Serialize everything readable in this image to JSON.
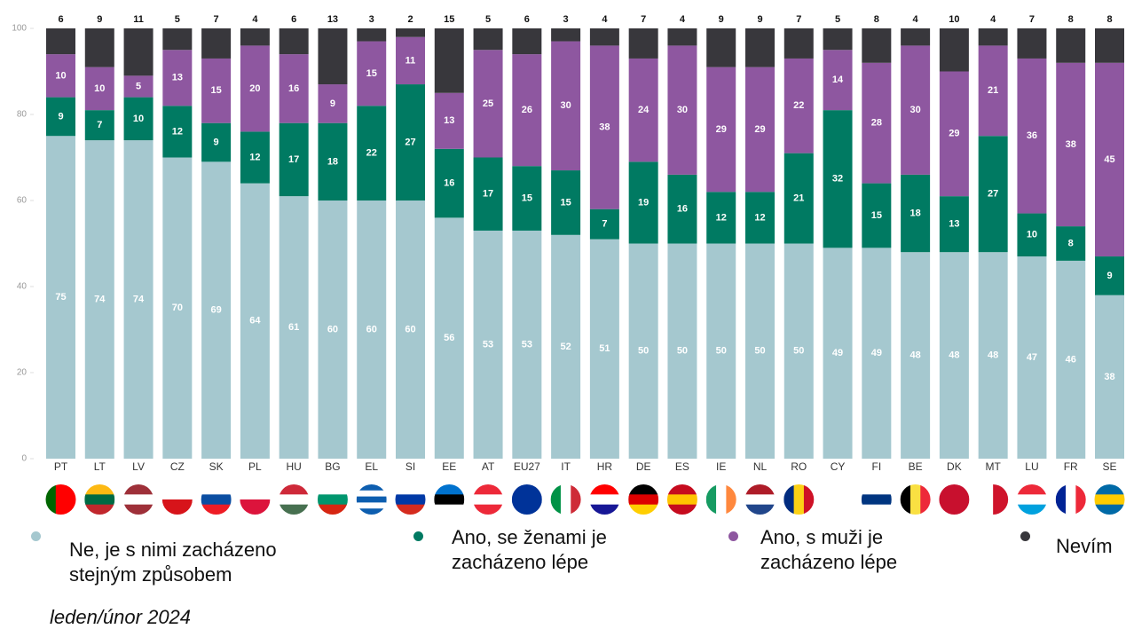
{
  "chart_data": {
    "type": "stacked-bar",
    "categories": [
      "PT",
      "LT",
      "LV",
      "CZ",
      "SK",
      "PL",
      "HU",
      "BG",
      "EL",
      "SI",
      "EE",
      "AT",
      "EU27",
      "IT",
      "HR",
      "DE",
      "ES",
      "IE",
      "NL",
      "RO",
      "CY",
      "FI",
      "BE",
      "DK",
      "MT",
      "LU",
      "FR",
      "SE"
    ],
    "series": [
      {
        "name": "Ne, je s nimi zacházeno stejným způsobem",
        "color": "#a5c8cf",
        "values": [
          75,
          74,
          74,
          70,
          69,
          64,
          61,
          60,
          60,
          60,
          56,
          53,
          53,
          52,
          51,
          50,
          50,
          50,
          50,
          50,
          49,
          49,
          48,
          48,
          48,
          47,
          46,
          38
        ]
      },
      {
        "name": "Ano, se ženami je zacházeno lépe",
        "color": "#007a62",
        "values": [
          9,
          7,
          10,
          12,
          9,
          12,
          17,
          18,
          22,
          27,
          16,
          17,
          15,
          15,
          7,
          19,
          16,
          12,
          12,
          21,
          32,
          15,
          18,
          13,
          27,
          10,
          8,
          9
        ]
      },
      {
        "name": "Ano, s muži je zacházeno lépe",
        "color": "#8e57a0",
        "values": [
          10,
          10,
          5,
          13,
          15,
          20,
          16,
          9,
          15,
          11,
          13,
          25,
          26,
          30,
          38,
          24,
          30,
          29,
          29,
          22,
          14,
          28,
          30,
          29,
          21,
          36,
          38,
          45
        ]
      },
      {
        "name": "Nevím",
        "color": "#38373c",
        "values": [
          6,
          9,
          11,
          5,
          7,
          4,
          6,
          13,
          3,
          2,
          15,
          5,
          6,
          3,
          4,
          7,
          4,
          9,
          9,
          7,
          5,
          8,
          4,
          10,
          4,
          7,
          8,
          8
        ]
      }
    ],
    "ylim": [
      0,
      100
    ],
    "yticks": [
      0,
      20,
      40,
      60,
      80,
      100
    ],
    "note": "leden/únor 2024"
  }
}
